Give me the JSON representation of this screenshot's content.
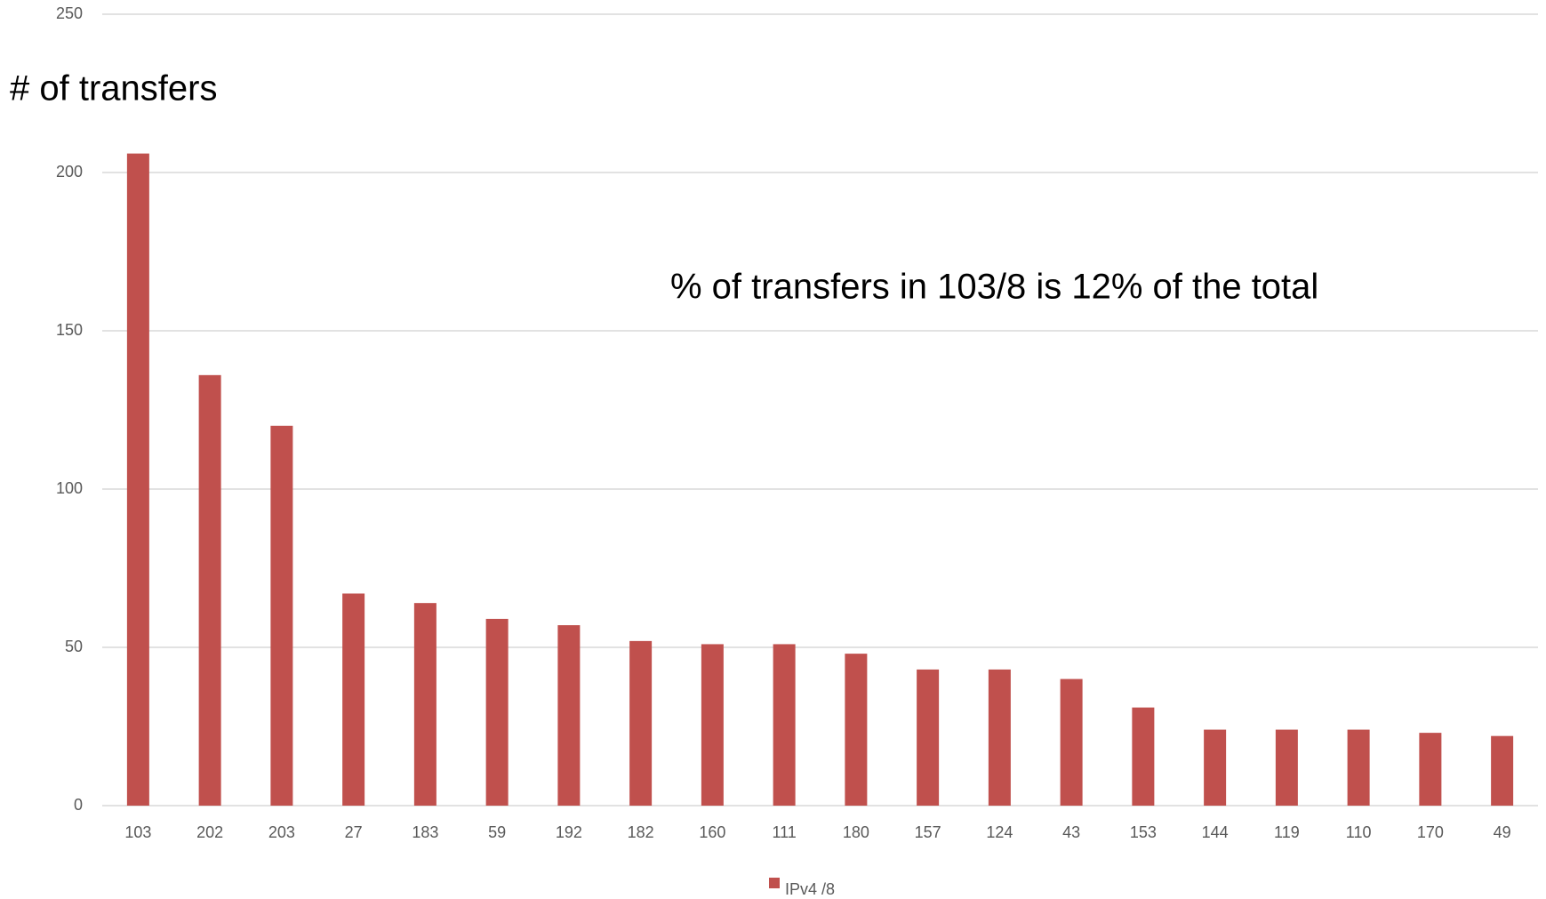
{
  "chart_data": {
    "type": "bar",
    "ylabel": "# of transfers",
    "annotation": "% of transfers in 103/8 is 12% of the total",
    "categories": [
      "103",
      "202",
      "203",
      "27",
      "183",
      "59",
      "192",
      "182",
      "160",
      "111",
      "180",
      "157",
      "124",
      "43",
      "153",
      "144",
      "119",
      "110",
      "170",
      "49"
    ],
    "series": [
      {
        "name": "IPv4 /8",
        "color": "#c0504d",
        "values": [
          206,
          136,
          120,
          67,
          64,
          59,
          57,
          52,
          51,
          51,
          48,
          43,
          43,
          40,
          31,
          24,
          24,
          24,
          23,
          22
        ]
      }
    ],
    "ylim": [
      0,
      250
    ],
    "yticks": [
      0,
      50,
      100,
      150,
      200,
      250
    ],
    "grid": true,
    "legend": "bottom"
  }
}
